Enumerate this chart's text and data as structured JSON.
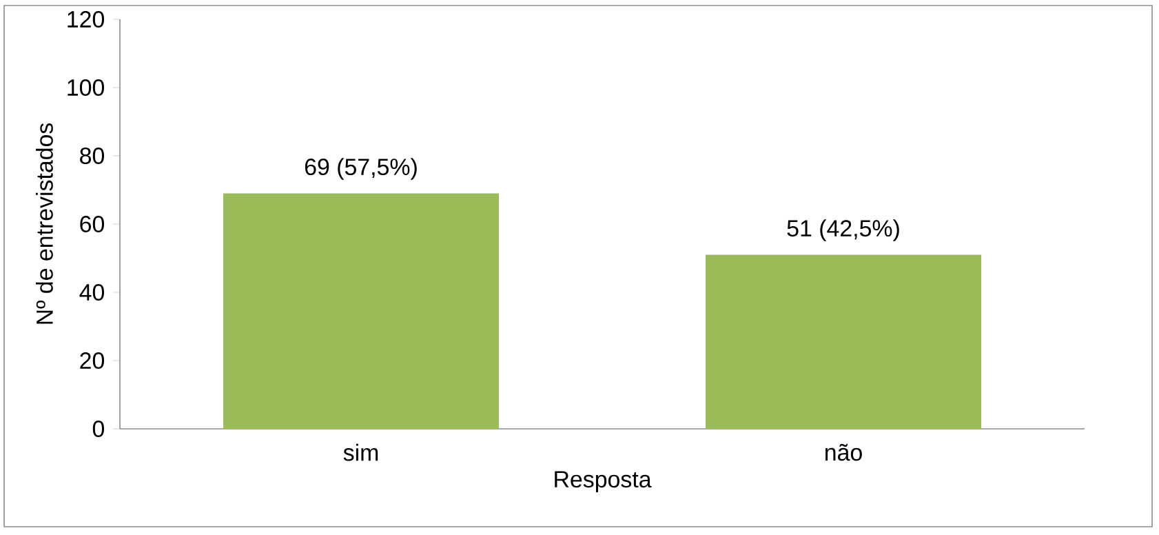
{
  "chart_data": {
    "type": "bar",
    "xlabel": "Resposta",
    "ylabel": "Nº de entrevistados",
    "categories": [
      "sim",
      "não"
    ],
    "values": [
      69,
      51
    ],
    "color": "#9bbb59",
    "value_labels": [
      "69 (57,5%)",
      "51 (42,5%)"
    ],
    "ylim": [
      0,
      120
    ],
    "yticks": [
      0,
      20,
      40,
      60,
      80,
      100,
      120
    ]
  }
}
